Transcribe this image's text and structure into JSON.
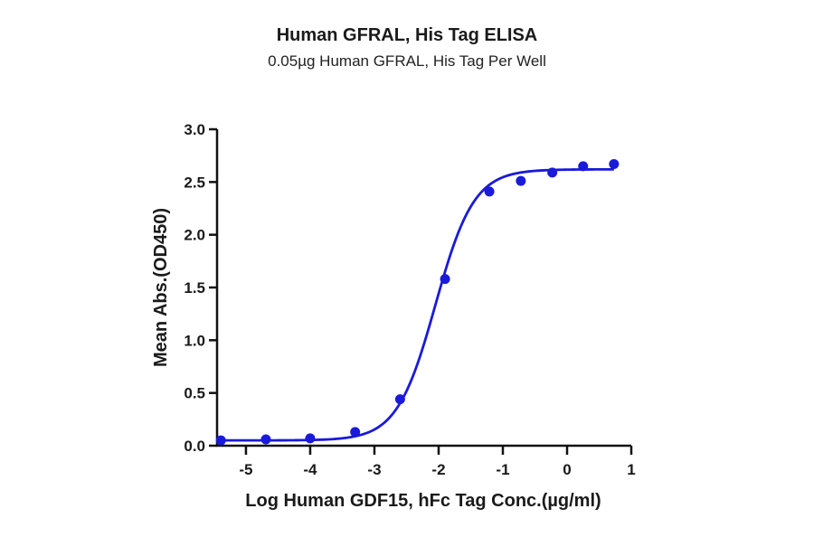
{
  "chart_data": {
    "type": "scatter",
    "title": "Human GFRAL, His Tag ELISA",
    "subtitle": "0.05µg Human GFRAL, His Tag Per Well",
    "xlabel": "Log Human GDF15, hFc Tag Conc.(µg/ml)",
    "ylabel": "Mean Abs.(OD450)",
    "xlim": [
      -5.45,
      1
    ],
    "ylim": [
      0,
      3.0
    ],
    "x_ticks": [
      -5,
      -4,
      -3,
      -2,
      -1,
      0,
      1
    ],
    "y_ticks": [
      0.0,
      0.5,
      1.0,
      1.5,
      2.0,
      2.5,
      3.0
    ],
    "x_tick_labels": [
      "-5",
      "-4",
      "-3",
      "-2",
      "-1",
      "0",
      "1"
    ],
    "y_tick_labels": [
      "0.0",
      "0.5",
      "1.0",
      "1.5",
      "2.0",
      "2.5",
      "3.0"
    ],
    "grid": false,
    "legend": null,
    "series": [
      {
        "name": "Measured points",
        "style": "markers",
        "color": "#1a1adb",
        "x": [
          -5.39,
          -4.69,
          -4.0,
          -3.3,
          -2.6,
          -1.9,
          -1.21,
          -0.72,
          -0.23,
          0.25,
          0.73
        ],
        "y": [
          0.05,
          0.06,
          0.07,
          0.13,
          0.44,
          1.58,
          2.41,
          2.51,
          2.59,
          2.65,
          2.67
        ]
      },
      {
        "name": "4-parameter logistic fit",
        "style": "line",
        "color": "#1a1adb",
        "bottom": 0.05,
        "top": 2.62,
        "log_ec50": -2.05,
        "hill_slope": 1.45,
        "x_range": [
          -5.39,
          0.73
        ]
      }
    ]
  }
}
